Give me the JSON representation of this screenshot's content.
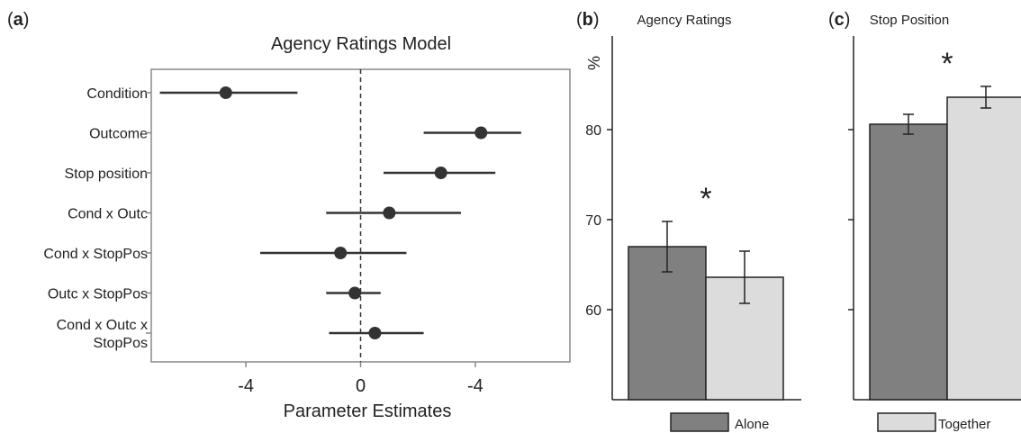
{
  "panels": [
    {
      "label": "(a)"
    },
    {
      "label": "(b)"
    },
    {
      "label": "(c)"
    }
  ],
  "chart_data": [
    {
      "type": "scatter",
      "title": "Agency Ratings Model",
      "xlabel": "Parameter Estimates",
      "ylabel": "",
      "x_ticks": [
        "-4",
        "0",
        "-4"
      ],
      "xlim": [
        -7.3,
        7.3
      ],
      "reference_line": 0,
      "categories": [
        "Condition",
        "Outcome",
        "Stop position",
        "Cond x Outc",
        "Cond x StopPos",
        "Outc x StopPos",
        "Cond x Outc x\nStopPos"
      ],
      "estimates": [
        -4.7,
        4.2,
        2.8,
        1.0,
        -0.7,
        -0.2,
        0.5
      ],
      "ci_low": [
        -7.0,
        2.2,
        0.8,
        -1.2,
        -3.5,
        -1.2,
        -1.1
      ],
      "ci_high": [
        -2.2,
        5.6,
        4.7,
        3.5,
        1.6,
        0.7,
        2.2
      ],
      "color": "#333333"
    },
    {
      "type": "bar",
      "title": "Agency Ratings",
      "ylabel": "%",
      "ylim": [
        50,
        90
      ],
      "y_ticks": [
        60,
        70,
        80
      ],
      "categories": [
        "Alone",
        "Together"
      ],
      "values": [
        67.0,
        63.6
      ],
      "errors": [
        2.8,
        2.9
      ],
      "colors": [
        "#808080",
        "#dcdcdc"
      ],
      "annotation": "*"
    },
    {
      "type": "bar",
      "title": "Stop Position",
      "ylim": [
        50,
        90
      ],
      "y_ticks": [
        60,
        70,
        80
      ],
      "categories": [
        "Alone",
        "Together"
      ],
      "values": [
        80.6,
        83.6
      ],
      "errors": [
        1.1,
        1.2
      ],
      "colors": [
        "#808080",
        "#dcdcdc"
      ],
      "annotation": "*"
    }
  ],
  "legend": [
    {
      "label": "Alone",
      "color": "#808080"
    },
    {
      "label": "Together",
      "color": "#dcdcdc"
    }
  ]
}
